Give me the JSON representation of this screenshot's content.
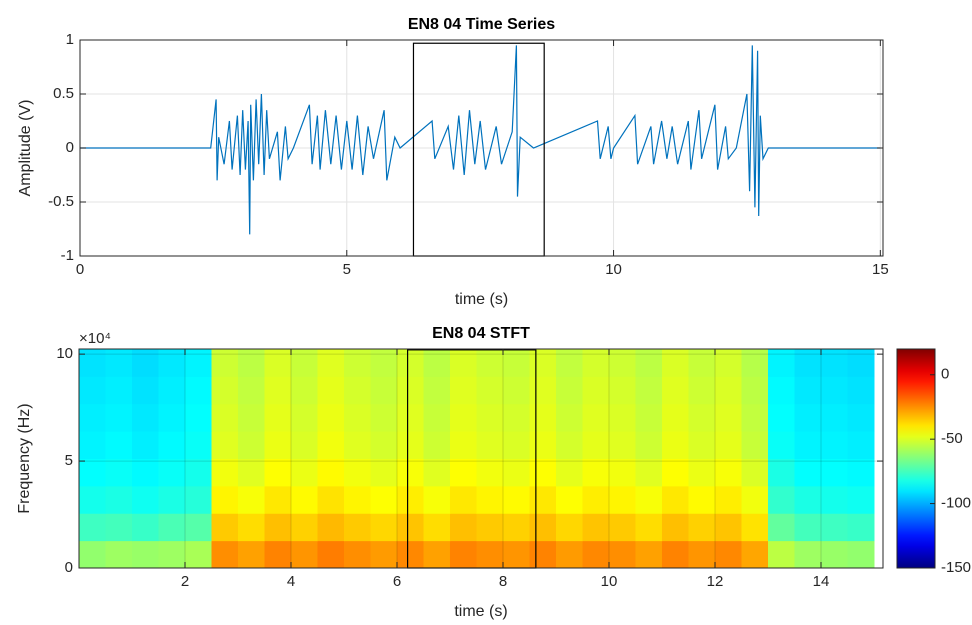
{
  "chart_data": [
    {
      "type": "line",
      "title": "EN8 04 Time Series",
      "xlabel": "time (s)",
      "ylabel": "Amplitude (V)",
      "color": "#0072bd",
      "grid": true,
      "xlim": [
        0,
        15.05
      ],
      "xticks": [
        0,
        5,
        10,
        15
      ],
      "ylim": [
        -1,
        1
      ],
      "yticks": [
        -1,
        -0.5,
        0,
        0.5,
        1
      ],
      "highlight": {
        "x": [
          6.25,
          8.7
        ],
        "y": [
          -1,
          0.97
        ]
      },
      "x": [
        0,
        2.45,
        2.55,
        2.57,
        2.6,
        2.7,
        2.8,
        2.85,
        2.95,
        3.0,
        3.05,
        3.1,
        3.15,
        3.18,
        3.2,
        3.25,
        3.3,
        3.35,
        3.4,
        3.45,
        3.5,
        3.55,
        3.7,
        3.75,
        3.85,
        3.9,
        4.0,
        4.3,
        4.35,
        4.45,
        4.5,
        4.6,
        4.7,
        4.8,
        4.9,
        5.0,
        5.1,
        5.2,
        5.3,
        5.4,
        5.5,
        5.7,
        5.75,
        5.9,
        6.0,
        6.6,
        6.65,
        6.9,
        7.0,
        7.1,
        7.2,
        7.3,
        7.4,
        7.5,
        7.6,
        7.8,
        7.9,
        8.1,
        8.18,
        8.2,
        8.25,
        8.5,
        9.7,
        9.75,
        9.9,
        9.95,
        10.0,
        10.4,
        10.45,
        10.7,
        10.75,
        10.9,
        11.0,
        11.1,
        11.2,
        11.4,
        11.45,
        11.6,
        11.65,
        11.9,
        11.95,
        12.1,
        12.15,
        12.3,
        12.5,
        12.55,
        12.6,
        12.65,
        12.7,
        12.72,
        12.75,
        12.8,
        12.9,
        15.0
      ],
      "values": [
        0,
        0,
        0.45,
        -0.3,
        0.1,
        -0.15,
        0.25,
        -0.2,
        0.3,
        -0.25,
        0.35,
        -0.2,
        0.25,
        -0.8,
        0.4,
        -0.3,
        0.45,
        -0.15,
        0.5,
        -0.25,
        0.35,
        -0.1,
        0.15,
        -0.3,
        0.2,
        -0.1,
        0,
        0.4,
        -0.15,
        0.3,
        -0.2,
        0.35,
        -0.15,
        0.3,
        -0.2,
        0.25,
        -0.2,
        0.3,
        -0.25,
        0.2,
        -0.1,
        0.35,
        -0.3,
        0.1,
        0,
        0.25,
        -0.1,
        0.2,
        -0.2,
        0.3,
        -0.25,
        0.35,
        -0.15,
        0.25,
        -0.2,
        0.2,
        -0.15,
        0.15,
        0.95,
        -0.45,
        0.1,
        0,
        0.25,
        -0.1,
        0.2,
        -0.1,
        0,
        0.3,
        -0.15,
        0.2,
        -0.15,
        0.25,
        -0.1,
        0.2,
        -0.15,
        0.25,
        -0.2,
        0.35,
        -0.1,
        0.4,
        -0.2,
        0.2,
        -0.1,
        0,
        0.5,
        -0.4,
        0.95,
        -0.55,
        0.9,
        -0.63,
        0.3,
        -0.1,
        0,
        0
      ]
    },
    {
      "type": "heatmap",
      "title": "EN8 04 STFT",
      "xlabel": "time (s)",
      "ylabel": "Frequency (Hz)",
      "colormap": "jet",
      "grid": true,
      "y_exponent_label": "×10⁴",
      "xlim": [
        0,
        15.17
      ],
      "xticks": [
        2,
        4,
        6,
        8,
        10,
        12,
        14
      ],
      "ylim": [
        0,
        102400
      ],
      "yticks": [
        {
          "value": 0,
          "label": "0"
        },
        {
          "value": 50000,
          "label": "5"
        },
        {
          "value": 100000,
          "label": "10"
        }
      ],
      "clim": [
        -150,
        20
      ],
      "cticks": [
        -150,
        -100,
        -50,
        0
      ],
      "highlight": {
        "x": [
          6.2,
          8.62
        ],
        "y": [
          0,
          102000
        ]
      },
      "x": [
        0.25,
        0.75,
        1.25,
        1.75,
        2.25,
        2.75,
        3.25,
        3.75,
        4.25,
        4.75,
        5.25,
        5.75,
        6.25,
        6.75,
        7.25,
        7.75,
        8.25,
        8.75,
        9.25,
        9.75,
        10.25,
        10.75,
        11.25,
        11.75,
        12.25,
        12.75,
        13.25,
        13.75,
        14.25,
        14.75
      ],
      "y": [
        6400,
        19200,
        32000,
        44800,
        57600,
        70400,
        83200,
        96000
      ],
      "z": [
        [
          -62,
          -60,
          -61,
          -60,
          -58,
          -25,
          -28,
          -23,
          -26,
          -22,
          -25,
          -27,
          -24,
          -28,
          -23,
          -25,
          -26,
          -23,
          -27,
          -24,
          -25,
          -28,
          -23,
          -26,
          -24,
          -29,
          -55,
          -60,
          -61,
          -62
        ],
        [
          -76,
          -75,
          -77,
          -74,
          -72,
          -35,
          -38,
          -33,
          -36,
          -32,
          -35,
          -37,
          -34,
          -38,
          -33,
          -35,
          -36,
          -33,
          -37,
          -34,
          -35,
          -38,
          -33,
          -36,
          -34,
          -39,
          -70,
          -75,
          -76,
          -77
        ],
        [
          -83,
          -82,
          -84,
          -82,
          -80,
          -42,
          -45,
          -40,
          -43,
          -39,
          -42,
          -44,
          -41,
          -45,
          -40,
          -42,
          -43,
          -40,
          -44,
          -41,
          -42,
          -45,
          -40,
          -43,
          -41,
          -46,
          -78,
          -82,
          -83,
          -84
        ],
        [
          -86,
          -85,
          -87,
          -85,
          -83,
          -46,
          -49,
          -44,
          -47,
          -43,
          -46,
          -48,
          -45,
          -49,
          -44,
          -46,
          -47,
          -44,
          -48,
          -45,
          -46,
          -49,
          -44,
          -47,
          -45,
          -50,
          -82,
          -86,
          -86,
          -87
        ],
        [
          -88,
          -87,
          -89,
          -87,
          -85,
          -49,
          -52,
          -47,
          -50,
          -46,
          -49,
          -51,
          -48,
          -52,
          -47,
          -49,
          -50,
          -47,
          -51,
          -48,
          -49,
          -52,
          -47,
          -50,
          -48,
          -53,
          -85,
          -88,
          -88,
          -89
        ],
        [
          -89,
          -88,
          -90,
          -88,
          -86,
          -50,
          -53,
          -48,
          -51,
          -47,
          -50,
          -52,
          -49,
          -53,
          -48,
          -50,
          -51,
          -48,
          -52,
          -49,
          -50,
          -53,
          -48,
          -51,
          -49,
          -54,
          -86,
          -89,
          -89,
          -90
        ],
        [
          -90,
          -89,
          -91,
          -89,
          -87,
          -51,
          -54,
          -49,
          -52,
          -48,
          -51,
          -53,
          -50,
          -54,
          -49,
          -51,
          -52,
          -49,
          -53,
          -50,
          -51,
          -54,
          -49,
          -52,
          -50,
          -55,
          -87,
          -90,
          -90,
          -91
        ],
        [
          -91,
          -90,
          -92,
          -90,
          -88,
          -52,
          -55,
          -50,
          -53,
          -49,
          -52,
          -54,
          -51,
          -55,
          -50,
          -52,
          -53,
          -50,
          -54,
          -51,
          -52,
          -55,
          -50,
          -53,
          -51,
          -56,
          -88,
          -91,
          -91,
          -92
        ]
      ]
    }
  ]
}
